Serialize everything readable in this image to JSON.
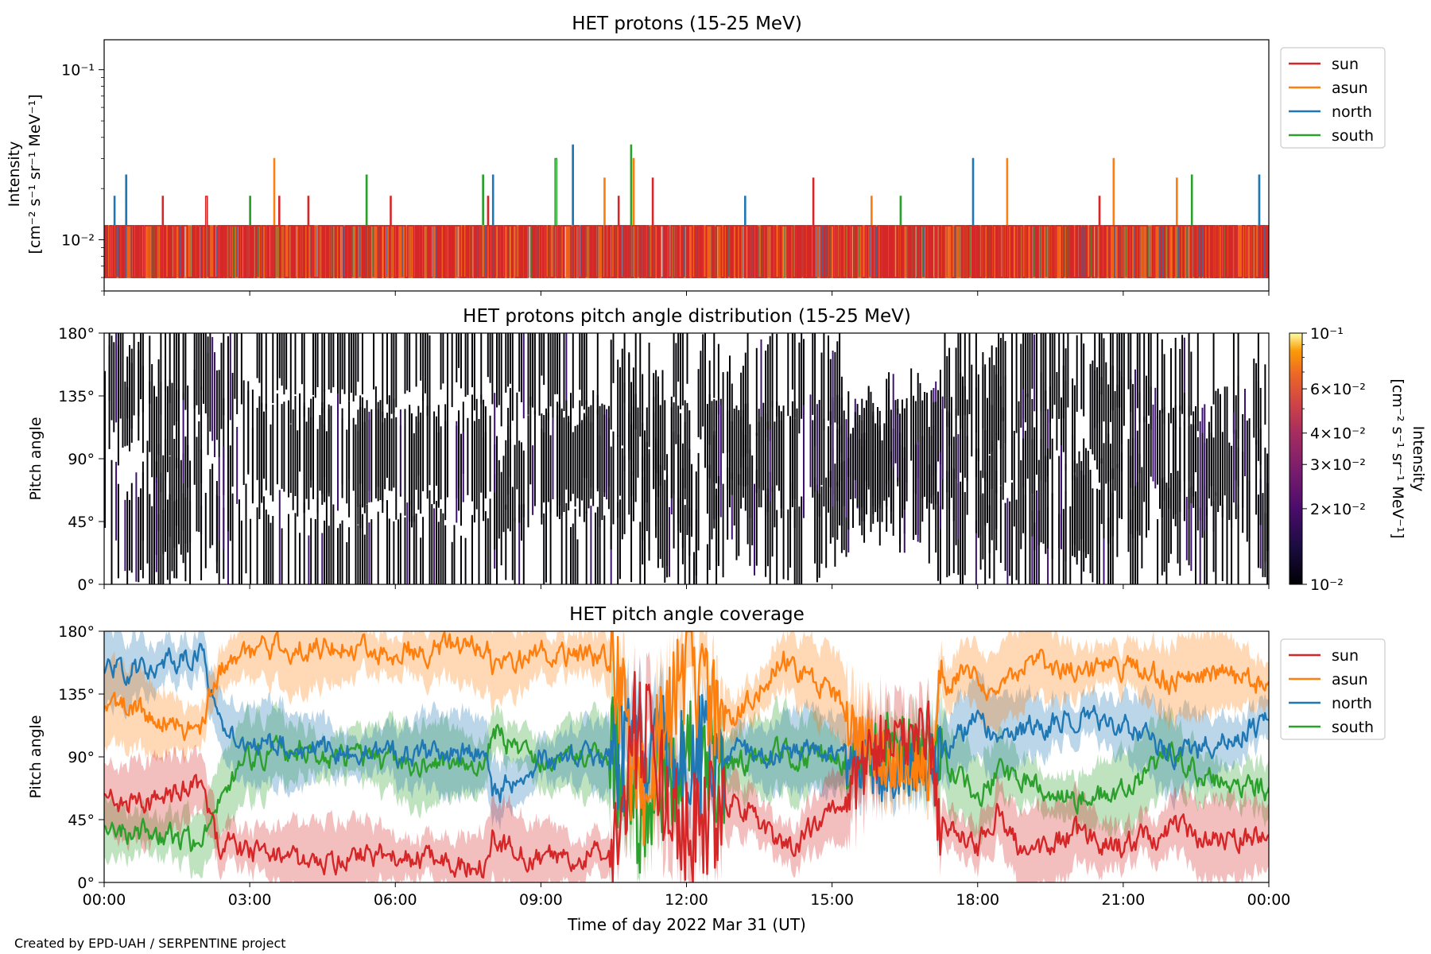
{
  "figure": {
    "footer": "Created by EPD-UAH / SERPENTINE project",
    "xlabel": "Time of day 2022 Mar 31 (UT)",
    "x_ticks": [
      "00:00",
      "03:00",
      "06:00",
      "09:00",
      "12:00",
      "15:00",
      "18:00",
      "21:00",
      "00:00"
    ]
  },
  "chart_data": [
    {
      "type": "line",
      "title": "HET protons (15-25 MeV)",
      "ylabel": "Intensity",
      "yunit": "[cm⁻² s⁻¹ sr⁻¹ MeV⁻¹]",
      "yscale": "log",
      "ylim": [
        0.005,
        0.15
      ],
      "y_ticks": [
        "10⁻²",
        "10⁻¹"
      ],
      "x_range_hours": [
        0,
        24
      ],
      "legend": {
        "placement": "outside-right-top",
        "entries": [
          "sun",
          "asun",
          "north",
          "south"
        ]
      },
      "notes": "Spiky count-limited intensities; baseline ~0.006-0.012, occasional spikes to 0.018-0.036.",
      "series": [
        {
          "name": "sun",
          "color": "#d62728",
          "baseline": 0.0121,
          "low": 0.006,
          "spikes": [
            [
              1.2,
              0.018
            ],
            [
              2.1,
              0.018
            ],
            [
              3.6,
              0.018
            ],
            [
              4.2,
              0.018
            ],
            [
              5.9,
              0.018
            ],
            [
              7.9,
              0.018
            ],
            [
              10.6,
              0.018
            ],
            [
              11.3,
              0.023
            ],
            [
              14.6,
              0.023
            ],
            [
              20.5,
              0.018
            ]
          ]
        },
        {
          "name": "asun",
          "color": "#ff7f0e",
          "baseline": 0.0121,
          "low": 0.006,
          "spikes": [
            [
              3.5,
              0.03
            ],
            [
              10.3,
              0.023
            ],
            [
              10.9,
              0.03
            ],
            [
              15.8,
              0.018
            ],
            [
              18.6,
              0.03
            ],
            [
              20.8,
              0.03
            ],
            [
              22.1,
              0.023
            ]
          ]
        },
        {
          "name": "north",
          "color": "#1f77b4",
          "baseline": 0.0121,
          "low": 0.006,
          "spikes": [
            [
              0.2,
              0.018
            ],
            [
              0.45,
              0.024
            ],
            [
              8.0,
              0.024
            ],
            [
              9.65,
              0.036
            ],
            [
              13.2,
              0.018
            ],
            [
              17.9,
              0.03
            ],
            [
              23.8,
              0.024
            ]
          ]
        },
        {
          "name": "south",
          "color": "#2ca02c",
          "baseline": 0.0121,
          "low": 0.006,
          "spikes": [
            [
              3.0,
              0.018
            ],
            [
              5.4,
              0.024
            ],
            [
              7.8,
              0.024
            ],
            [
              9.3,
              0.03
            ],
            [
              10.85,
              0.036
            ],
            [
              16.4,
              0.018
            ],
            [
              22.4,
              0.024
            ]
          ]
        }
      ]
    },
    {
      "type": "heatmap",
      "title": "HET protons pitch angle distribution (15-25 MeV)",
      "ylabel": "Pitch angle",
      "ylim": [
        0,
        180
      ],
      "y_ticks": [
        "0°",
        "45°",
        "90°",
        "135°",
        "180°"
      ],
      "x_range_hours": [
        0,
        24
      ],
      "notes": "Sparse detections: nearly all bins at the colorbar minimum (dark/black), white where no counts.",
      "colorbar": {
        "label": "Intensity",
        "unit": "[cm⁻² s⁻¹ sr⁻¹ MeV⁻¹]",
        "scale": "log",
        "range": [
          0.01,
          0.1
        ],
        "colormap": "inferno",
        "tick_labels": [
          "10⁻²",
          "2×10⁻²",
          "3×10⁻²",
          "4×10⁻²",
          "6×10⁻²",
          "10⁻¹"
        ],
        "tick_values": [
          0.01,
          0.02,
          0.03,
          0.04,
          0.06,
          0.1
        ]
      }
    },
    {
      "type": "line",
      "title": "HET pitch angle coverage",
      "ylabel": "Pitch angle",
      "ylim": [
        0,
        180
      ],
      "y_ticks": [
        "0°",
        "45°",
        "90°",
        "135°",
        "180°"
      ],
      "x_range_hours": [
        0,
        24
      ],
      "legend": {
        "placement": "outside-right-top",
        "entries": [
          "sun",
          "asun",
          "north",
          "south"
        ]
      },
      "notes": "Mean pitch angle per telescope with shaded coverage band (approx. ±25°).",
      "series": [
        {
          "name": "sun",
          "color": "#d62728",
          "x": [
            0,
            1,
            2,
            2.3,
            3,
            4,
            6,
            7.9,
            8,
            9,
            10.5,
            11,
            12,
            13,
            14,
            15,
            16,
            17,
            17.2,
            18,
            18.4,
            19,
            20,
            21,
            22,
            23,
            24
          ],
          "y": [
            60,
            55,
            70,
            30,
            20,
            15,
            20,
            10,
            30,
            15,
            25,
            120,
            30,
            60,
            20,
            50,
            100,
            110,
            40,
            25,
            50,
            20,
            35,
            25,
            40,
            30,
            35
          ]
        },
        {
          "name": "asun",
          "color": "#ff7f0e",
          "x": [
            0,
            1,
            2,
            2.3,
            3,
            4,
            6,
            7.9,
            8,
            9,
            10.5,
            11,
            12,
            13,
            14,
            15,
            16,
            17,
            17.2,
            18,
            18.4,
            19,
            20,
            21,
            22,
            23,
            24
          ],
          "y": [
            130,
            120,
            110,
            150,
            165,
            170,
            165,
            170,
            150,
            165,
            160,
            60,
            150,
            120,
            160,
            135,
            90,
            80,
            140,
            150,
            130,
            160,
            150,
            155,
            145,
            150,
            140
          ]
        },
        {
          "name": "north",
          "color": "#1f77b4",
          "x": [
            0,
            1,
            2,
            2.3,
            3,
            4,
            6,
            7.9,
            8,
            9,
            10.5,
            11,
            12,
            13,
            14,
            15,
            16,
            17,
            17.2,
            18,
            18.4,
            19,
            20,
            21,
            22,
            23,
            24
          ],
          "y": [
            150,
            155,
            165,
            120,
            100,
            95,
            90,
            95,
            60,
            90,
            90,
            100,
            90,
            95,
            90,
            95,
            80,
            85,
            90,
            120,
            100,
            110,
            120,
            115,
            90,
            100,
            115
          ]
        },
        {
          "name": "south",
          "color": "#2ca02c",
          "x": [
            0,
            1,
            2,
            2.3,
            3,
            4,
            6,
            7.9,
            8,
            9,
            10.5,
            11,
            12,
            13,
            14,
            15,
            16,
            17,
            17.2,
            18,
            18.4,
            19,
            20,
            21,
            22,
            23,
            24
          ],
          "y": [
            40,
            35,
            25,
            60,
            90,
            95,
            85,
            90,
            110,
            85,
            90,
            50,
            90,
            85,
            95,
            85,
            100,
            95,
            90,
            60,
            80,
            70,
            60,
            65,
            90,
            70,
            65
          ]
        }
      ]
    }
  ]
}
